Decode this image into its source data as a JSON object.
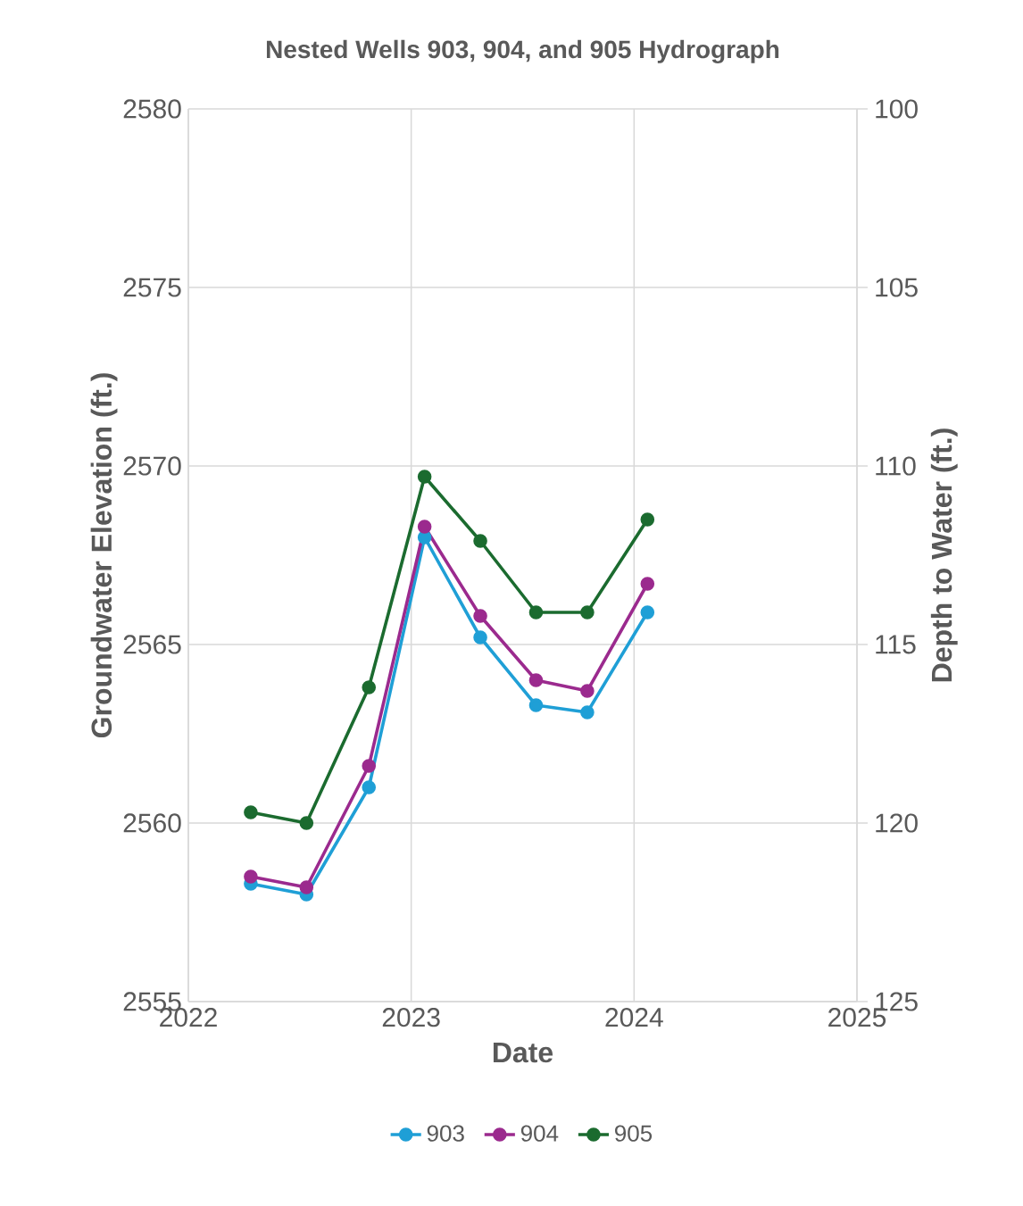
{
  "chart_data": {
    "type": "line",
    "title": "Nested Wells 903, 904, and 905 Hydrograph",
    "xlabel": "Date",
    "ylabel": "Groundwater Elevation (ft.)",
    "y2label": "Depth to Water (ft.)",
    "x": [
      2022.28,
      2022.53,
      2022.81,
      2023.06,
      2023.31,
      2023.56,
      2023.79,
      2024.06
    ],
    "series": [
      {
        "name": "903",
        "color": "#1f9fd6",
        "values": [
          2558.3,
          2558.0,
          2561.0,
          2568.0,
          2565.2,
          2563.3,
          2563.1,
          2565.9
        ]
      },
      {
        "name": "904",
        "color": "#9b2a8e",
        "values": [
          2558.5,
          2558.2,
          2561.6,
          2568.3,
          2565.8,
          2564.0,
          2563.7,
          2566.7
        ]
      },
      {
        "name": "905",
        "color": "#1b6b2f",
        "values": [
          2560.3,
          2560.0,
          2563.8,
          2569.7,
          2567.9,
          2565.9,
          2565.9,
          2568.5
        ]
      }
    ],
    "xlim": [
      2022,
      2025
    ],
    "xticks": [
      2022,
      2023,
      2024,
      2025
    ],
    "ylim": [
      2555,
      2580
    ],
    "yticks": [
      2555,
      2560,
      2565,
      2570,
      2575,
      2580
    ],
    "y2lim": [
      125,
      100
    ],
    "y2ticks": [
      100,
      105,
      110,
      115,
      120,
      125
    ],
    "grid": true,
    "legend": "bottom",
    "marker": "circle",
    "line_style": "solid"
  }
}
